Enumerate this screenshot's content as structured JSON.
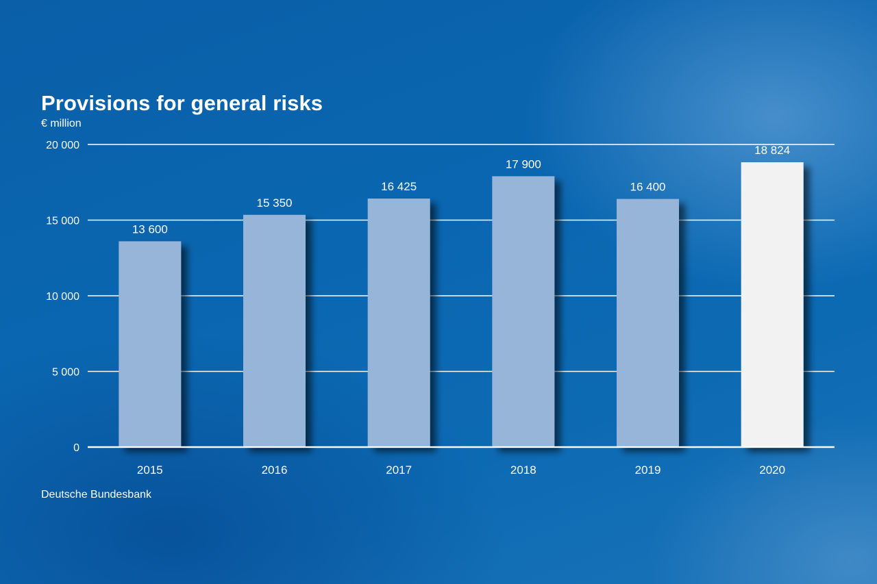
{
  "chart_data": {
    "type": "bar",
    "title": "Provisions for general risks",
    "ylabel": "€ million",
    "source": "Deutsche Bundesbank",
    "categories": [
      "2015",
      "2016",
      "2017",
      "2018",
      "2019",
      "2020"
    ],
    "values": [
      13600,
      15350,
      16425,
      17900,
      16400,
      18824
    ],
    "value_labels": [
      "13 600",
      "15 350",
      "16 425",
      "17 900",
      "16 400",
      "18 824"
    ],
    "ylim": [
      0,
      20000
    ],
    "yticks": [
      0,
      5000,
      10000,
      15000,
      20000
    ],
    "ytick_labels": [
      "0",
      "5 000",
      "10 000",
      "15 000",
      "20 000"
    ],
    "grid": true,
    "highlight_index": 5,
    "colors": {
      "bar": "#97b4d9",
      "highlight_bar": "#f2f2f2",
      "text": "#ffffff",
      "background": "#0a66b0"
    }
  }
}
